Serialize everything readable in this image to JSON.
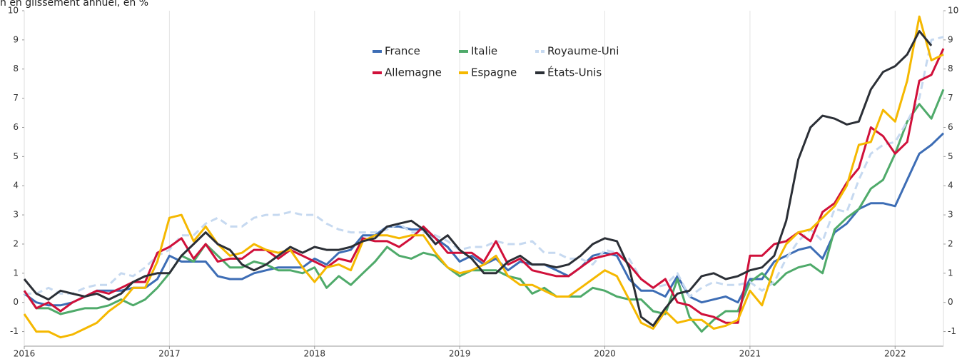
{
  "chart_data": {
    "type": "line",
    "title": "n en glissement annuel, en %",
    "x": [
      2016,
      2016.083,
      2016.167,
      2016.25,
      2016.333,
      2016.417,
      2016.5,
      2016.583,
      2016.667,
      2016.75,
      2016.833,
      2016.917,
      2017,
      2017.083,
      2017.167,
      2017.25,
      2017.333,
      2017.417,
      2017.5,
      2017.583,
      2017.667,
      2017.75,
      2017.833,
      2017.917,
      2018,
      2018.083,
      2018.167,
      2018.25,
      2018.333,
      2018.417,
      2018.5,
      2018.583,
      2018.667,
      2018.75,
      2018.833,
      2018.917,
      2019,
      2019.083,
      2019.167,
      2019.25,
      2019.333,
      2019.417,
      2019.5,
      2019.583,
      2019.667,
      2019.75,
      2019.833,
      2019.917,
      2020,
      2020.083,
      2020.167,
      2020.25,
      2020.333,
      2020.417,
      2020.5,
      2020.583,
      2020.667,
      2020.75,
      2020.833,
      2020.917,
      2021,
      2021.083,
      2021.167,
      2021.25,
      2021.333,
      2021.417,
      2021.5,
      2021.583,
      2021.667,
      2021.75,
      2021.833,
      2021.917,
      2022,
      2022.083,
      2022.167,
      2022.25,
      2022.333
    ],
    "series": [
      {
        "name": "France",
        "color": "#3d6db5",
        "dash": false,
        "values": [
          0.3,
          0.0,
          -0.1,
          -0.1,
          0.0,
          0.2,
          0.4,
          0.4,
          0.4,
          0.5,
          0.5,
          0.8,
          1.6,
          1.4,
          1.4,
          1.4,
          0.9,
          0.8,
          0.8,
          1.0,
          1.1,
          1.2,
          1.2,
          1.2,
          1.5,
          1.3,
          1.7,
          1.8,
          2.3,
          2.3,
          2.6,
          2.6,
          2.5,
          2.5,
          2.2,
          1.9,
          1.4,
          1.6,
          1.3,
          1.5,
          1.1,
          1.4,
          1.3,
          1.3,
          1.1,
          0.9,
          1.2,
          1.6,
          1.7,
          1.6,
          0.8,
          0.4,
          0.4,
          0.2,
          0.9,
          0.2,
          0.0,
          0.1,
          0.2,
          0.0,
          0.8,
          0.8,
          1.4,
          1.6,
          1.8,
          1.9,
          1.5,
          2.4,
          2.7,
          3.2,
          3.4,
          3.4,
          3.3,
          4.2,
          5.1,
          5.4,
          5.8
        ]
      },
      {
        "name": "Italie",
        "color": "#4faa6a",
        "dash": false,
        "values": [
          0.4,
          -0.2,
          -0.2,
          -0.4,
          -0.3,
          -0.2,
          -0.2,
          -0.1,
          0.1,
          -0.1,
          0.1,
          0.5,
          1.0,
          1.6,
          1.4,
          2.0,
          1.6,
          1.2,
          1.2,
          1.4,
          1.3,
          1.1,
          1.1,
          1.0,
          1.2,
          0.5,
          0.9,
          0.6,
          1.0,
          1.4,
          1.9,
          1.6,
          1.5,
          1.7,
          1.6,
          1.2,
          0.9,
          1.1,
          1.1,
          1.1,
          0.9,
          0.8,
          0.3,
          0.5,
          0.2,
          0.2,
          0.2,
          0.5,
          0.4,
          0.2,
          0.1,
          0.1,
          -0.3,
          -0.4,
          0.8,
          -0.5,
          -1.0,
          -0.6,
          -0.3,
          -0.3,
          0.7,
          1.0,
          0.6,
          1.0,
          1.2,
          1.3,
          1.0,
          2.5,
          2.9,
          3.2,
          3.9,
          4.2,
          5.1,
          6.2,
          6.8,
          6.3,
          7.3
        ]
      },
      {
        "name": "Royaume-Uni",
        "color": "#c6d9f0",
        "dash": true,
        "values": [
          0.3,
          0.3,
          0.5,
          0.3,
          0.3,
          0.5,
          0.6,
          0.6,
          1.0,
          0.9,
          1.2,
          1.6,
          1.8,
          2.3,
          2.3,
          2.7,
          2.9,
          2.6,
          2.6,
          2.9,
          3.0,
          3.0,
          3.1,
          3.0,
          3.0,
          2.7,
          2.5,
          2.4,
          2.4,
          2.4,
          2.5,
          2.7,
          2.4,
          2.4,
          2.3,
          2.1,
          1.8,
          1.9,
          1.9,
          2.1,
          2.0,
          2.0,
          2.1,
          1.7,
          1.7,
          1.5,
          1.5,
          1.3,
          1.8,
          1.7,
          1.5,
          0.8,
          0.5,
          0.6,
          1.0,
          0.2,
          0.5,
          0.7,
          0.6,
          0.6,
          0.7,
          0.4,
          0.7,
          1.5,
          2.1,
          2.5,
          2.1,
          3.2,
          3.1,
          4.2,
          5.1,
          5.4,
          5.5,
          6.2,
          7.0,
          9.0,
          9.1
        ]
      },
      {
        "name": "Allemagne",
        "color": "#d0103a",
        "dash": false,
        "values": [
          0.4,
          -0.2,
          0.0,
          -0.3,
          0.0,
          0.2,
          0.4,
          0.3,
          0.5,
          0.7,
          0.7,
          1.7,
          1.9,
          2.2,
          1.5,
          2.0,
          1.4,
          1.5,
          1.5,
          1.8,
          1.8,
          1.5,
          1.8,
          1.6,
          1.4,
          1.2,
          1.5,
          1.4,
          2.2,
          2.1,
          2.1,
          1.9,
          2.2,
          2.6,
          2.2,
          1.7,
          1.7,
          1.7,
          1.4,
          2.1,
          1.3,
          1.5,
          1.1,
          1.0,
          0.9,
          0.9,
          1.2,
          1.5,
          1.6,
          1.7,
          1.3,
          0.8,
          0.5,
          0.8,
          0.0,
          -0.1,
          -0.4,
          -0.5,
          -0.7,
          -0.7,
          1.6,
          1.6,
          2.0,
          2.1,
          2.4,
          2.1,
          3.1,
          3.4,
          4.1,
          4.6,
          6.0,
          5.7,
          5.1,
          5.5,
          7.6,
          7.8,
          8.7
        ]
      },
      {
        "name": "Espagne",
        "color": "#f5b800",
        "dash": false,
        "values": [
          -0.4,
          -1.0,
          -1.0,
          -1.2,
          -1.1,
          -0.9,
          -0.7,
          -0.3,
          0.0,
          0.5,
          0.5,
          1.4,
          2.9,
          3.0,
          2.1,
          2.6,
          2.0,
          1.6,
          1.7,
          2.0,
          1.8,
          1.7,
          1.8,
          1.2,
          0.7,
          1.2,
          1.3,
          1.1,
          2.1,
          2.3,
          2.3,
          2.2,
          2.3,
          2.3,
          1.7,
          1.2,
          1.0,
          1.1,
          1.3,
          1.6,
          0.9,
          0.6,
          0.6,
          0.4,
          0.2,
          0.2,
          0.5,
          0.8,
          1.1,
          0.9,
          0.1,
          -0.7,
          -0.9,
          -0.3,
          -0.7,
          -0.6,
          -0.6,
          -0.9,
          -0.8,
          -0.6,
          0.4,
          -0.1,
          1.2,
          2.0,
          2.4,
          2.5,
          2.9,
          3.3,
          4.0,
          5.4,
          5.5,
          6.6,
          6.2,
          7.6,
          9.8,
          8.3,
          8.5
        ]
      },
      {
        "name": "États-Unis",
        "color": "#2b2f36",
        "dash": false,
        "values": [
          0.8,
          0.3,
          0.1,
          0.4,
          0.3,
          0.2,
          0.3,
          0.1,
          0.3,
          0.7,
          0.9,
          1.0,
          1.0,
          1.6,
          2.0,
          2.4,
          2.0,
          1.8,
          1.3,
          1.1,
          1.3,
          1.6,
          1.9,
          1.7,
          1.9,
          1.8,
          1.8,
          1.9,
          2.1,
          2.2,
          2.6,
          2.7,
          2.8,
          2.5,
          2.0,
          2.3,
          1.8,
          1.5,
          1.0,
          1.0,
          1.4,
          1.6,
          1.3,
          1.3,
          1.2,
          1.3,
          1.6,
          2.0,
          2.2,
          2.1,
          1.2,
          -0.5,
          -0.8,
          -0.2,
          0.3,
          0.4,
          0.9,
          1.0,
          0.8,
          0.9,
          1.1,
          1.2,
          1.6,
          2.8,
          4.9,
          6.0,
          6.4,
          6.3,
          6.1,
          6.2,
          7.3,
          7.9,
          8.1,
          8.5,
          9.3,
          8.8,
          null
        ]
      }
    ],
    "xlim": [
      2016,
      2022.333
    ],
    "xticks": [
      2016,
      2017,
      2018,
      2019,
      2020,
      2021,
      2022
    ],
    "ylim": [
      -1.5,
      10
    ],
    "yticks": [
      -1,
      0,
      1,
      2,
      3,
      4,
      5,
      6,
      7,
      8,
      9,
      10
    ],
    "y_axis_both_sides": true,
    "grid": "x",
    "legend": "top-center"
  }
}
